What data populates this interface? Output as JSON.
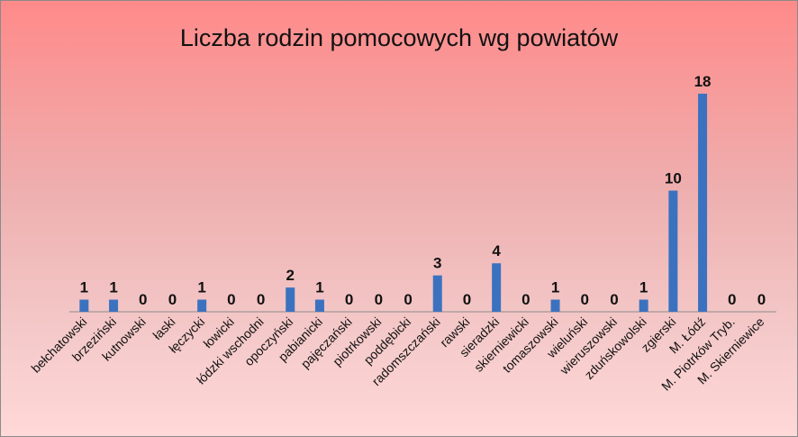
{
  "chart_data": {
    "type": "bar",
    "title": "Liczba rodzin pomocowych wg powiatów",
    "xlabel": "",
    "ylabel": "",
    "ylim": [
      0,
      18
    ],
    "grid": false,
    "legend": "none",
    "bar_color": "#3b72bf",
    "categories": [
      "bełchatowski",
      "brzeziński",
      "kutnowski",
      "łaski",
      "łęczycki",
      "łowicki",
      "łódzki wschodni",
      "opoczyński",
      "pabianicki",
      "pajęczański",
      "piotrkowski",
      "poddębicki",
      "radomszczański",
      "rawski",
      "sieradzki",
      "skierniewicki",
      "tomaszowski",
      "wieluński",
      "wieruszowski",
      "zduńskowolski",
      "zgierski",
      "M. Łódź",
      "M. Piotrków Tryb.",
      "M. Skierniewice"
    ],
    "values": [
      1,
      1,
      0,
      0,
      1,
      0,
      0,
      2,
      1,
      0,
      0,
      0,
      3,
      0,
      4,
      0,
      1,
      0,
      0,
      1,
      10,
      18,
      0,
      0
    ]
  }
}
